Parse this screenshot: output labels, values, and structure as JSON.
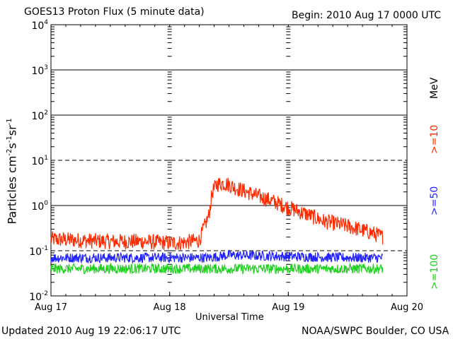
{
  "header": {
    "title": "GOES13 Proton Flux (5 minute data)",
    "begin": "Begin: 2010 Aug 17 0000 UTC"
  },
  "footer": {
    "updated": "Updated 2010 Aug 19 22:06:17 UTC",
    "credit": "NOAA/SWPC Boulder, CO USA"
  },
  "chart_data": {
    "type": "line",
    "title": "GOES13 Proton Flux (5 minute data)",
    "xlabel": "Universal Time",
    "ylabel": "Particles cm-2s-1sr-1",
    "yscale": "log",
    "ylim": [
      0.01,
      10000
    ],
    "xlim": [
      "2010-08-17 00:00",
      "2010-08-20 00:00"
    ],
    "x_ticks": [
      "Aug 17",
      "Aug 18",
      "Aug 19",
      "Aug 20"
    ],
    "y_ticks": [
      {
        "base": "10",
        "exp": "-2"
      },
      {
        "base": "10",
        "exp": "-1"
      },
      {
        "base": "10",
        "exp": "0"
      },
      {
        "base": "10",
        "exp": "1"
      },
      {
        "base": "10",
        "exp": "2"
      },
      {
        "base": "10",
        "exp": "3"
      },
      {
        "base": "10",
        "exp": "4"
      }
    ],
    "grid": true,
    "legend_placement": "right",
    "legend_unit": "MeV",
    "series": [
      {
        "name": ">=10",
        "color": "#ff2a00",
        "x_days": [
          0,
          0.25,
          0.5,
          0.75,
          1.0,
          1.1,
          1.25,
          1.33,
          1.36,
          1.4,
          1.45,
          1.5,
          1.55,
          1.65,
          1.75,
          1.85,
          2.0,
          2.15,
          2.3,
          2.5,
          2.7,
          2.8
        ],
        "values": [
          0.18,
          0.17,
          0.16,
          0.16,
          0.15,
          0.15,
          0.17,
          0.6,
          2.0,
          3.0,
          3.1,
          2.9,
          2.5,
          2.0,
          1.6,
          1.3,
          0.9,
          0.65,
          0.45,
          0.35,
          0.25,
          0.2
        ]
      },
      {
        "name": ">=50",
        "color": "#2222ff",
        "x_days": [
          0,
          0.5,
          1.0,
          1.33,
          1.5,
          2.0,
          2.5,
          2.8
        ],
        "values": [
          0.07,
          0.07,
          0.07,
          0.07,
          0.08,
          0.075,
          0.07,
          0.07
        ]
      },
      {
        "name": ">=100",
        "color": "#22d022",
        "x_days": [
          0,
          0.5,
          1.0,
          1.5,
          2.0,
          2.5,
          2.8
        ],
        "values": [
          0.04,
          0.04,
          0.04,
          0.04,
          0.04,
          0.04,
          0.04
        ]
      }
    ]
  }
}
